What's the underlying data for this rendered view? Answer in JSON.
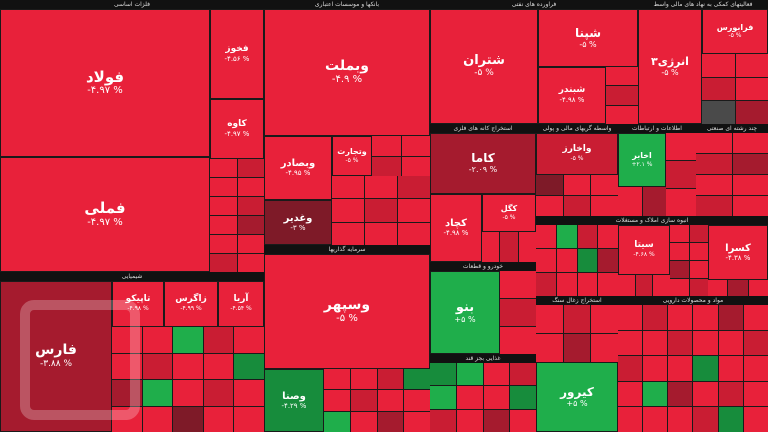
{
  "sectors": {
    "basic_metals": "فلزات اساسی",
    "banks": "بانکها و موسسات اعتباری",
    "cement": "سیمان آهک گچ",
    "oil_products": "فراورده های نفتی",
    "non_bank_finance": "فعالیتهای کمکی به نهاد های مالی واسط",
    "chemicals": "شیمیایی",
    "investment": "سرمایه گذاریها",
    "auto": "خودرو و قطعات",
    "pharma": "مواد و محصولات دارویی",
    "mining": "استخراج کانه های فلزی",
    "financial": "واسطه گریهای مالی و پولی",
    "telecom": "اطلاعات و ارتباطات",
    "multi_industry": "چند رشته ای صنعتی",
    "real_estate": "انبوه سازی املاک و مستغلات",
    "food": "غذایی بجز قند",
    "coal": "استخراج زغال سنگ",
    "electric": "عرضه برق گاز"
  },
  "tiles": {
    "fooolad": {
      "name": "فولاد",
      "pct": "-۴.۹۷ %"
    },
    "famli": {
      "name": "فملی",
      "pct": "-۴.۹۷ %"
    },
    "fakhouz": {
      "name": "فخوز",
      "pct": "-۴.۵۶ %"
    },
    "kaveh": {
      "name": "کاوه",
      "pct": "-۴.۹۷ %"
    },
    "vabemellat": {
      "name": "وبملت",
      "pct": "-۴.۹ %"
    },
    "vebsader": {
      "name": "وبصادر",
      "pct": "-۴.۹۵ %"
    },
    "vtejarat": {
      "name": "وتجارت",
      "pct": "-۵ %"
    },
    "shetran": {
      "name": "شتران",
      "pct": "-۵ %"
    },
    "shepna": {
      "name": "شپنا",
      "pct": "-۵ %"
    },
    "shebandar": {
      "name": "شبندر",
      "pct": "-۴.۹۸ %"
    },
    "energy3": {
      "name": "انرژی۳",
      "pct": "-۵ %"
    },
    "farabourse": {
      "name": "فرابورس",
      "pct": "-۵ %"
    },
    "vaghadir": {
      "name": "وغدیر",
      "pct": "-۳ %"
    },
    "kama": {
      "name": "کاما",
      "pct": "-۲.۰۹ %"
    },
    "kechad": {
      "name": "کچاد",
      "pct": "-۴.۹۸ %"
    },
    "kegel": {
      "name": "کگل",
      "pct": "-۵ %"
    },
    "vakhariz": {
      "name": "واخارز",
      "pct": "-۵ %"
    },
    "akhaber": {
      "name": "اخابر",
      "pct": "+۲.۱ %"
    },
    "faras": {
      "name": "فارس",
      "pct": "-۳.۸۸ %"
    },
    "tapiko": {
      "name": "تاپیکو",
      "pct": "-۴.۹۸ %"
    },
    "zagros": {
      "name": "زاگرس",
      "pct": "-۴.۹۹ %"
    },
    "arya": {
      "name": "آریا",
      "pct": "-۴.۵۴ %"
    },
    "vesepahr": {
      "name": "وسپهر",
      "pct": "-۵ %"
    },
    "vesena": {
      "name": "وصنا",
      "pct": "-۴.۲۹ %"
    },
    "khodro": {
      "name": "خودرو",
      "pct": "-۵ %"
    },
    "benu": {
      "name": "بنو",
      "pct": "+۵ %"
    },
    "kerbor": {
      "name": "کیرور",
      "pct": "+۵ %"
    },
    "kasra": {
      "name": "کسرا",
      "pct": "-۴.۳۸ %"
    },
    "sita": {
      "name": "سیتا",
      "pct": "-۴.۶۸ %"
    }
  }
}
